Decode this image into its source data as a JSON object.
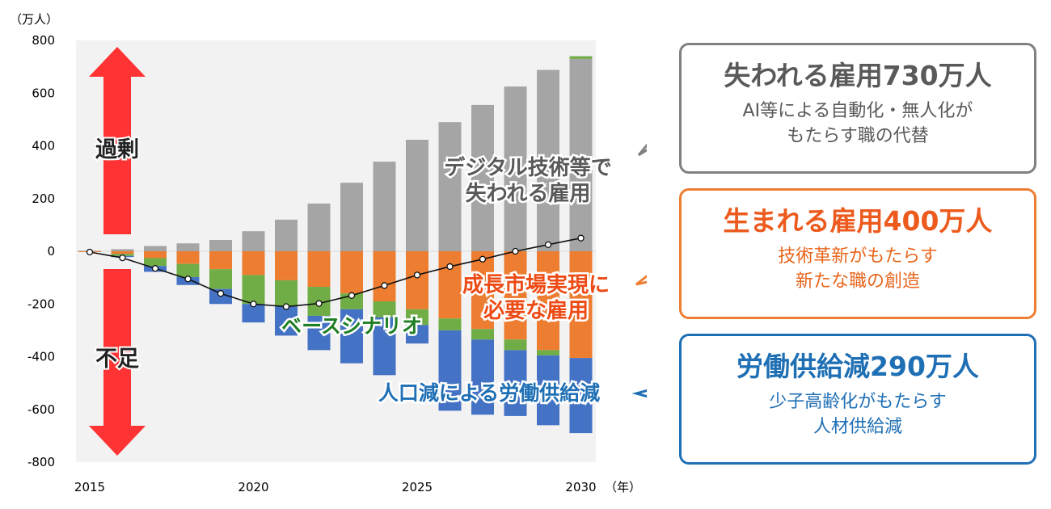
{
  "chart_data": {
    "type": "bar",
    "stacked": true,
    "y_unit": "（万人）",
    "x_unit": "（年）",
    "ylim": [
      -800,
      800
    ],
    "y_ticks": [
      "800",
      "600",
      "400",
      "200",
      "0",
      "-200",
      "-400",
      "-600",
      "-800"
    ],
    "x_tick_labels": [
      {
        "year": 2015,
        "label": "2015"
      },
      {
        "year": 2020,
        "label": "2020"
      },
      {
        "year": 2025,
        "label": "2025"
      },
      {
        "year": 2030,
        "label": "2030"
      }
    ],
    "years": [
      2015,
      2016,
      2017,
      2018,
      2019,
      2020,
      2021,
      2022,
      2023,
      2024,
      2025,
      2026,
      2027,
      2028,
      2029,
      2030
    ],
    "series": [
      {
        "color": "#A5A5A5",
        "values": [
          2,
          8,
          20,
          30,
          43,
          76,
          120,
          181,
          260,
          340,
          423,
          490,
          555,
          625,
          688,
          730
        ]
      },
      {
        "color": "#70AD47",
        "values": [
          0,
          0,
          0,
          0,
          0,
          0,
          0,
          0,
          0,
          0,
          0,
          0,
          0,
          0,
          0,
          10
        ]
      },
      {
        "color": "#ED7D31",
        "values": [
          -3,
          -10,
          -26,
          -48,
          -68,
          -90,
          -110,
          -135,
          -160,
          -190,
          -220,
          -255,
          -295,
          -335,
          -375,
          -405
        ]
      },
      {
        "color": "#70AD47",
        "values": [
          0,
          -8,
          -30,
          -50,
          -75,
          -110,
          -100,
          -110,
          -60,
          -60,
          -60,
          -45,
          -40,
          -40,
          -20,
          0
        ]
      },
      {
        "color": "#4472C4",
        "values": [
          0,
          -4,
          -22,
          -30,
          -57,
          -70,
          -110,
          -130,
          -205,
          -220,
          -70,
          -305,
          -285,
          -250,
          -265,
          -285
        ]
      }
    ],
    "base_scenario": [
      -3,
      -25,
      -65,
      -105,
      -160,
      -200,
      -210,
      -198,
      -168,
      -130,
      -90,
      -58,
      -30,
      0,
      25,
      50
    ],
    "annotations": {
      "surplus": "過剰",
      "shortage": "不足",
      "digital_lost_line1": "デジタル技術等で",
      "digital_lost_line2": "失われる雇用",
      "growth_line1": "成長市場実現に",
      "growth_line2": "必要な雇用",
      "base_scenario": "ベースシナリオ",
      "population": "人口減による労働供給減"
    },
    "colors": {
      "plot_bg": "#F2F2F2",
      "arrow": "#FF3333",
      "base_label": "#1E7F24",
      "growth_label": "#ED4B15",
      "population_label": "#1F6FB5",
      "digital_label": "#595959"
    }
  },
  "callouts": {
    "lost": {
      "headline": "失われる雇用730万人",
      "sub1": "AI等による自動化・無人化が",
      "sub2": "もたらす職の代替"
    },
    "created": {
      "headline": "生まれる雇用400万人",
      "sub1": "技術革新がもたらす",
      "sub2": "新たな職の創造"
    },
    "shrink": {
      "headline": "労働供給減290万人",
      "sub1": "少子高齢化がもたらす",
      "sub2": "人材供給減"
    }
  }
}
